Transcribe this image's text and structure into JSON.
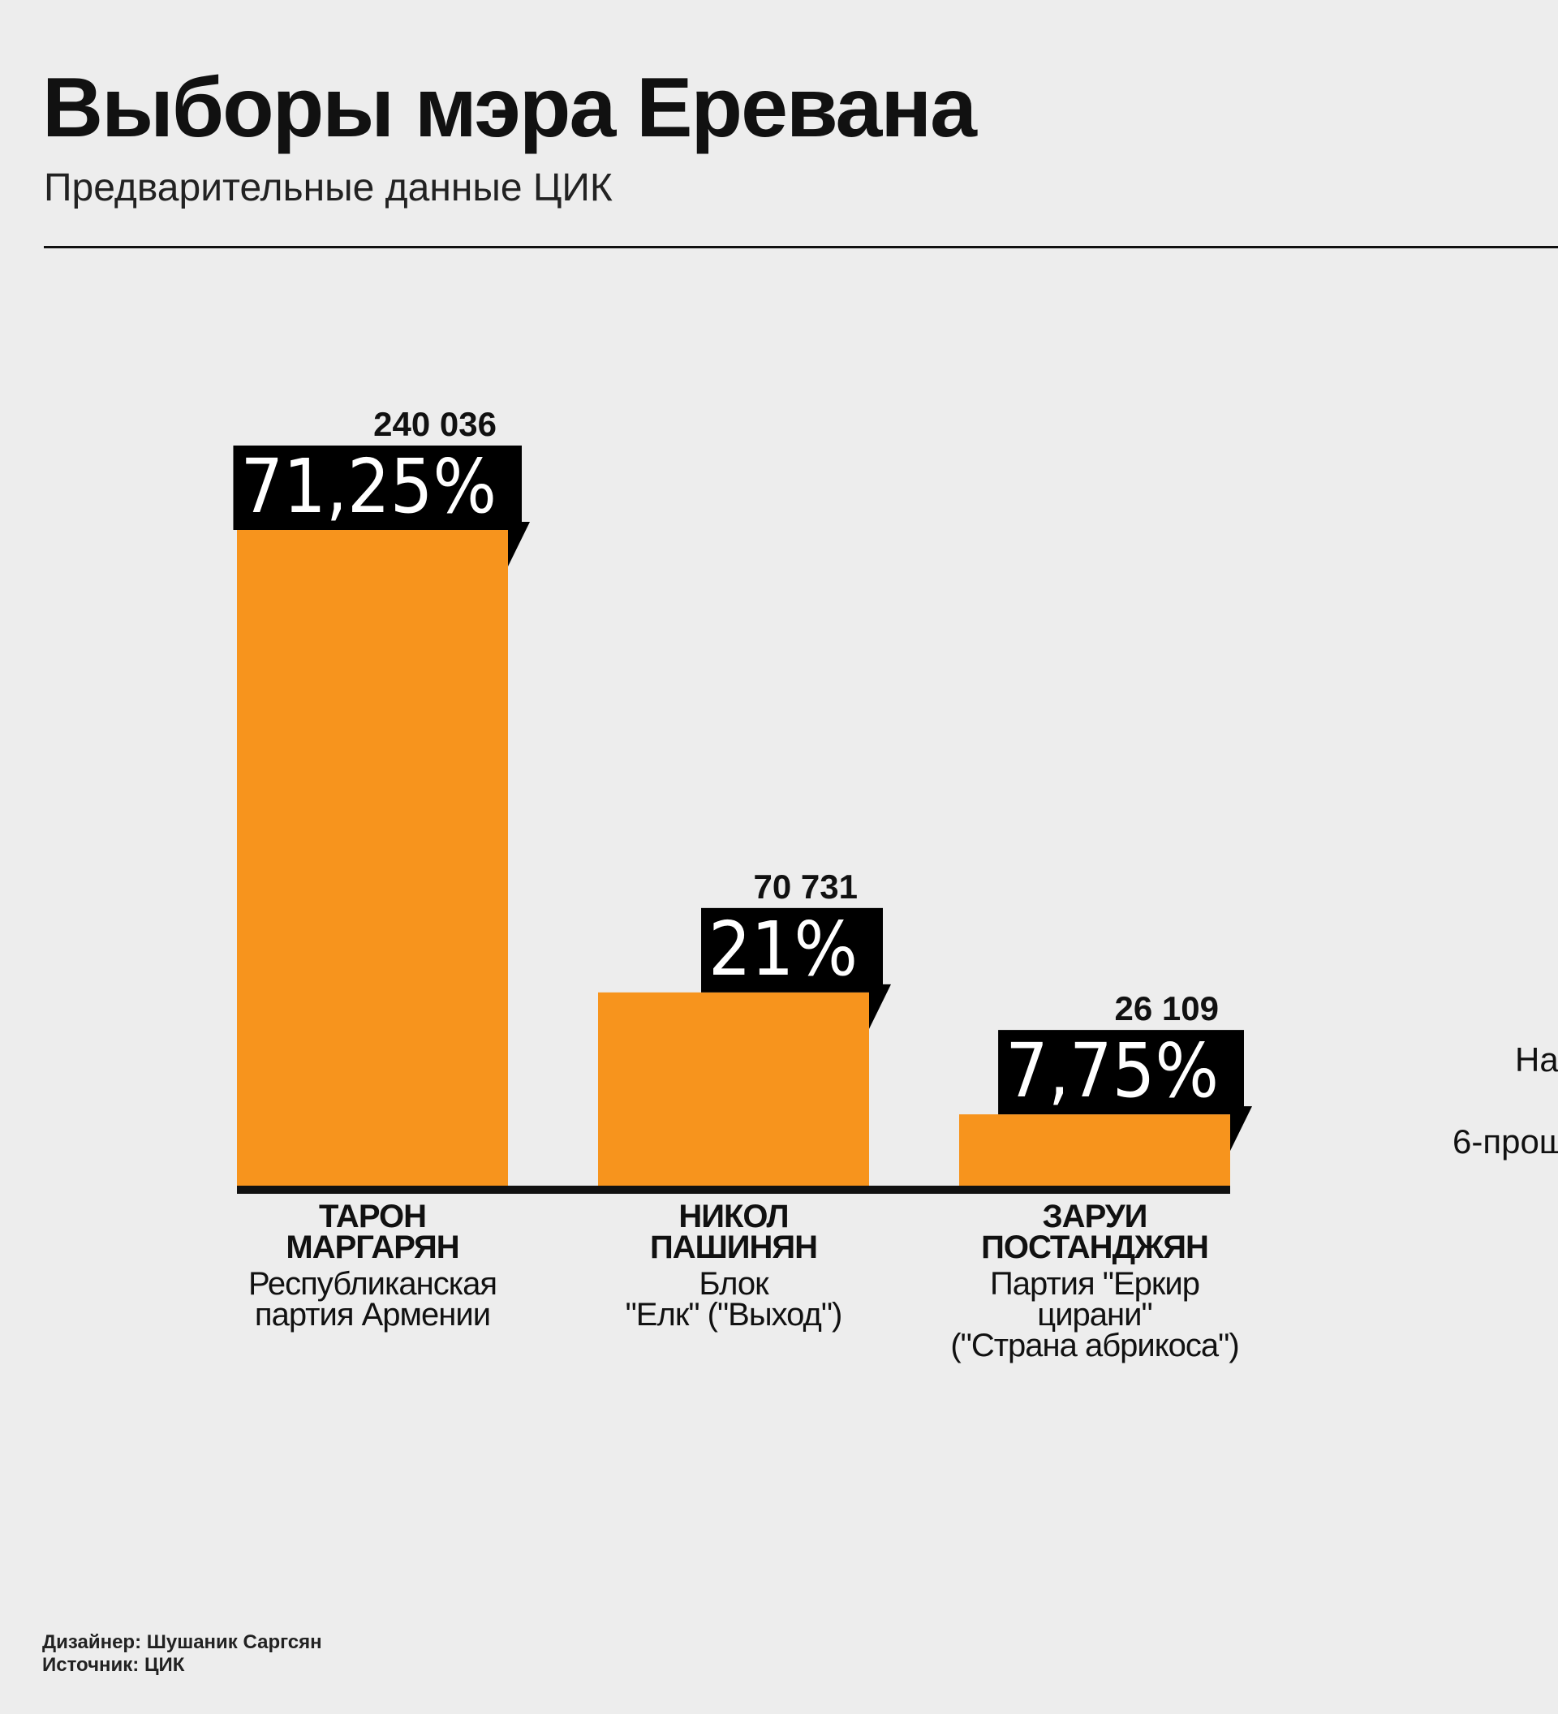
{
  "title": "Выборы мэра Еревана",
  "subtitle": "Предварительные данные ЦИК",
  "side_text": [
    "На",
    "6-прош"
  ],
  "footer": {
    "designer": "Дизайнер: Шушаник Саргсян",
    "source": "Источник: ЦИК"
  },
  "colors": {
    "bar": "#f7941d",
    "label_box": "#000000",
    "background": "#ededed"
  },
  "chart_data": {
    "type": "bar",
    "title": "Выборы мэра Еревана",
    "subtitle": "Предварительные данные ЦИК",
    "xlabel": "",
    "ylabel": "",
    "ylim": [
      0,
      71.25
    ],
    "grid": false,
    "categories": [
      "ТАРОН МАРГАРЯН",
      "НИКОЛ ПАШИНЯН",
      "ЗАРУИ ПОСТАНДЖЯН"
    ],
    "values": [
      71.25,
      21,
      7.75
    ],
    "percent_labels": [
      "71,25%",
      "21%",
      "7,75%"
    ],
    "votes": [
      "240 036",
      "70 731",
      "26 109"
    ],
    "candidates": [
      {
        "name_lines": [
          "ТАРОН",
          "МАРГАРЯН"
        ],
        "party_lines": [
          "Республиканская",
          "партия Армении"
        ]
      },
      {
        "name_lines": [
          "НИКОЛ",
          "ПАШИНЯН"
        ],
        "party_lines": [
          "Блок",
          "\"Елк\" (\"Выход\")"
        ]
      },
      {
        "name_lines": [
          "ЗАРУИ",
          "ПОСТАНДЖЯН"
        ],
        "party_lines": [
          "Партия \"Еркир",
          "цирани\"",
          "(\"Страна абрикоса\")"
        ]
      }
    ]
  }
}
